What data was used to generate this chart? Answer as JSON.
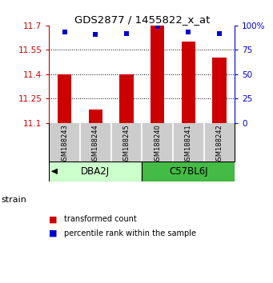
{
  "title": "GDS2877 / 1455822_x_at",
  "samples": [
    "GSM188243",
    "GSM188244",
    "GSM188245",
    "GSM188240",
    "GSM188241",
    "GSM188242"
  ],
  "red_values": [
    11.4,
    11.18,
    11.4,
    11.7,
    11.6,
    11.5
  ],
  "blue_values": [
    93,
    91,
    92,
    99,
    93,
    92
  ],
  "y_min": 11.1,
  "y_max": 11.7,
  "y_ticks": [
    11.1,
    11.25,
    11.4,
    11.55,
    11.7
  ],
  "y_tick_labels": [
    "11.1",
    "11.25",
    "11.4",
    "11.55",
    "11.7"
  ],
  "y2_ticks": [
    0,
    25,
    50,
    75,
    100
  ],
  "y2_tick_labels": [
    "0",
    "25",
    "50",
    "75",
    "100%"
  ],
  "groups": [
    {
      "label": "DBA2J",
      "indices": [
        0,
        1,
        2
      ],
      "color": "#ccffcc"
    },
    {
      "label": "C57BL6J",
      "indices": [
        3,
        4,
        5
      ],
      "color": "#44bb44"
    }
  ],
  "bar_color": "#cc0000",
  "dot_color": "#0000cc",
  "bar_width": 0.45,
  "strain_label": "strain",
  "legend_red": "transformed count",
  "legend_blue": "percentile rank within the sample",
  "bg_color": "#ffffff",
  "plot_bg": "#ffffff",
  "sample_box_color": "#cccccc"
}
